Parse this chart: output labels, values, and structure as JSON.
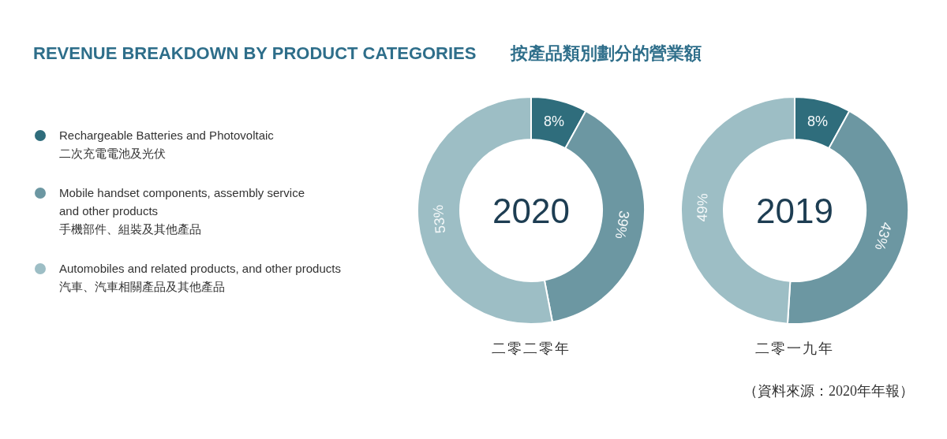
{
  "chart_data": [
    {
      "type": "donut",
      "title": "REVENUE BREAKDOWN BY PRODUCT CATEGORIES　　按產品類別劃分的營業額",
      "xlabel": "二零二零年",
      "annotations": [
        "2020"
      ],
      "categories": [
        "Rechargeable Batteries and Photovoltaic\n二次充電電池及光伏",
        "Mobile handset components, assembly service\nand other products\n手機部件、組裝及其他產品",
        "Automobiles and related products, and other products\n汽車、汽車相關產品及其他產品"
      ],
      "values": [
        8,
        39,
        53
      ],
      "value_labels": [
        "8%",
        "39%",
        "53%"
      ],
      "colors": [
        "#2f6d7c",
        "#6c97a2",
        "#9dbec5"
      ],
      "legend": "left"
    },
    {
      "type": "donut",
      "xlabel": "二零一九年",
      "annotations": [
        "2019",
        "（資料來源：2020年年報）"
      ],
      "categories": [
        null,
        null,
        null
      ],
      "values": [
        8,
        43,
        49
      ],
      "value_labels": [
        "8%",
        "43%",
        "49%"
      ],
      "colors": [
        "#2f6d7c",
        "#6c97a2",
        "#9dbec5"
      ]
    }
  ]
}
